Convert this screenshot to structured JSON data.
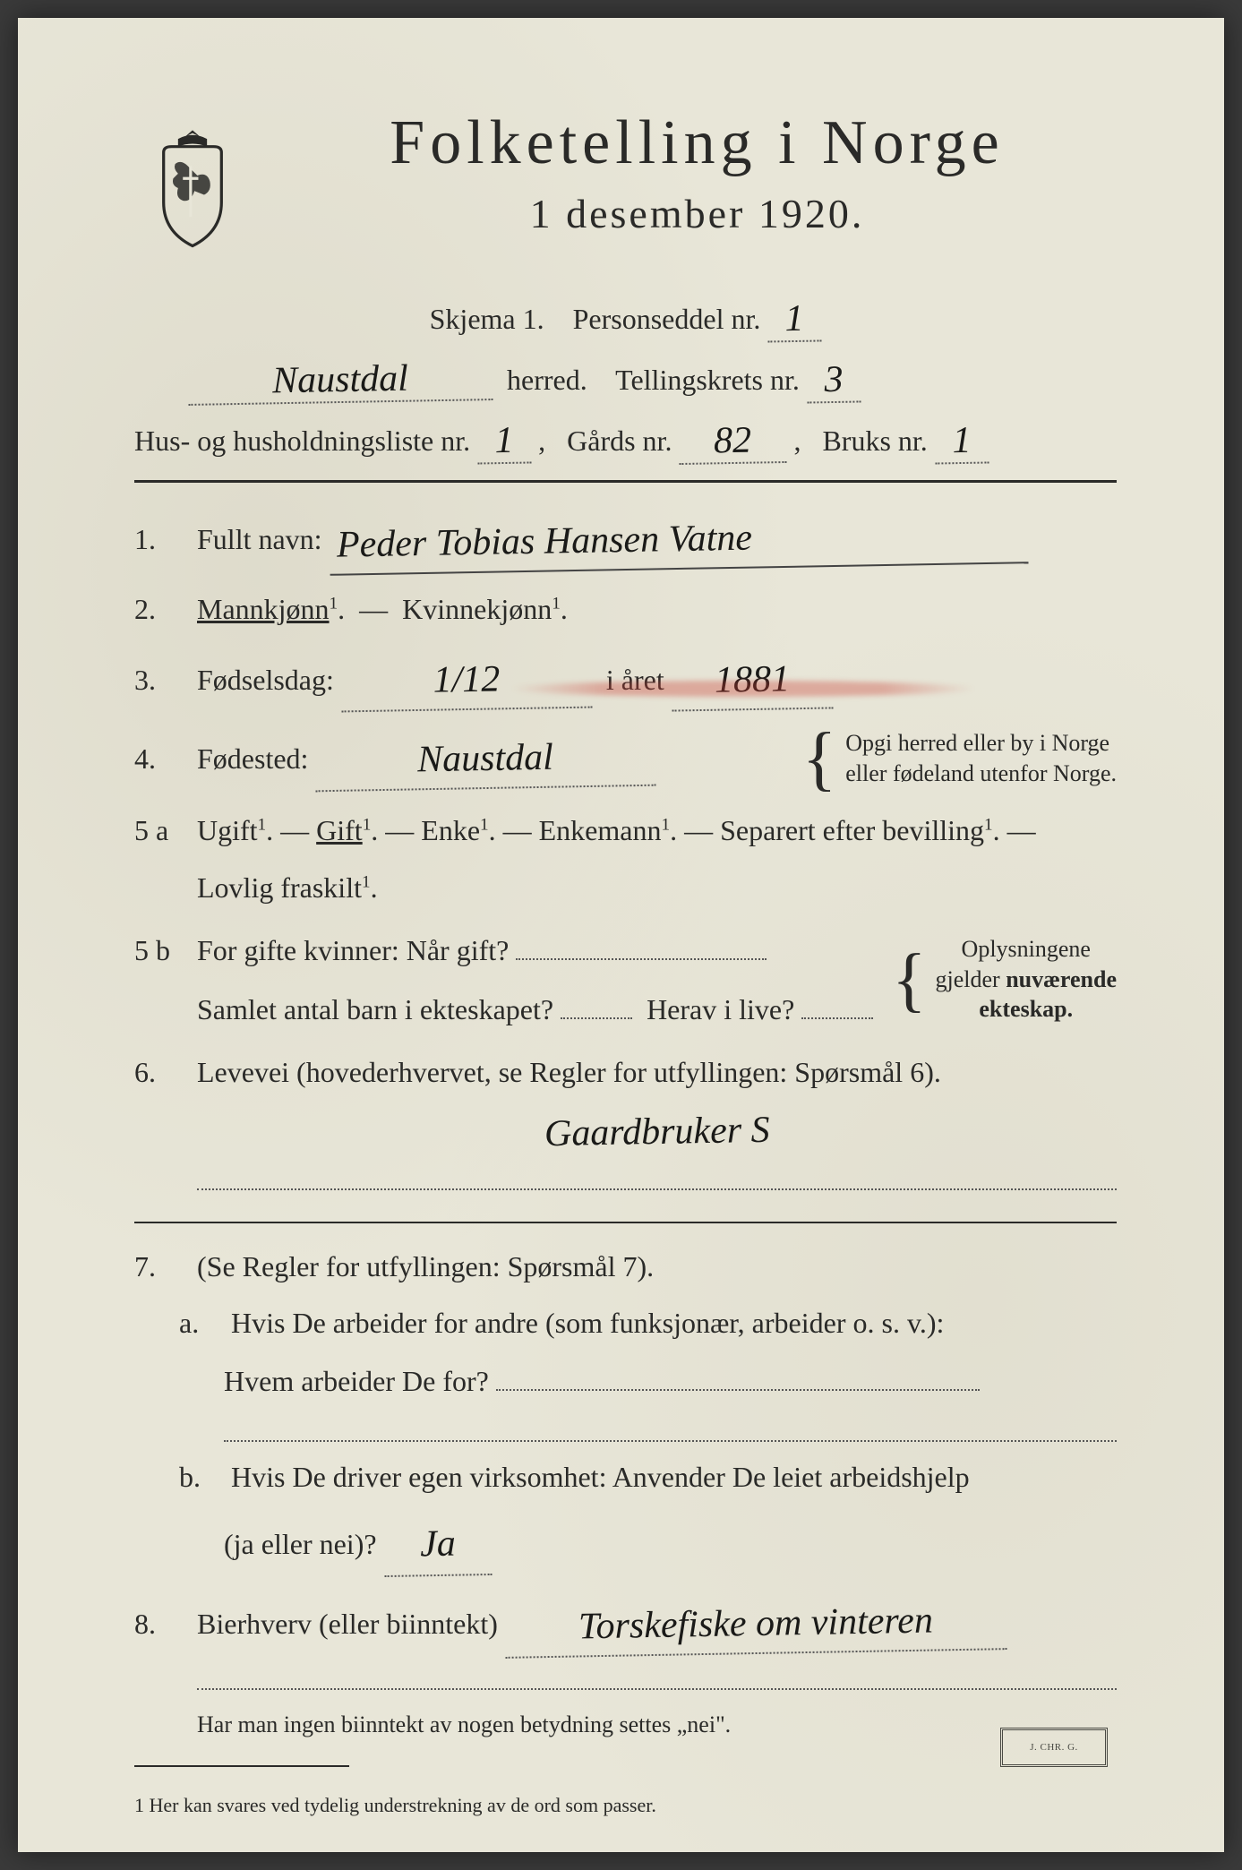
{
  "header": {
    "title": "Folketelling i Norge",
    "subtitle": "1 desember 1920."
  },
  "meta": {
    "skjema_label": "Skjema 1.",
    "personseddel_label": "Personseddel nr.",
    "personseddel_nr": "1",
    "herred_value": "Naustdal",
    "herred_label": "herred.",
    "tellingskrets_label": "Tellingskrets nr.",
    "tellingskrets_nr": "3",
    "hus_label": "Hus- og husholdningsliste nr.",
    "hus_nr": "1",
    "gards_label": "Gårds nr.",
    "gards_nr": "82",
    "bruks_label": "Bruks nr.",
    "bruks_nr": "1"
  },
  "q1": {
    "num": "1.",
    "label": "Fullt navn:",
    "value": "Peder Tobias Hansen Vatne"
  },
  "q2": {
    "num": "2.",
    "opt1": "Mannkjønn",
    "opt2": "Kvinnekjønn",
    "sup": "1"
  },
  "q3": {
    "num": "3.",
    "label": "Fødselsdag:",
    "day": "1/12",
    "year_label": "i året",
    "year": "1881"
  },
  "q4": {
    "num": "4.",
    "label": "Fødested:",
    "value": "Naustdal",
    "note1": "Opgi herred eller by i Norge",
    "note2": "eller fødeland utenfor Norge."
  },
  "q5a": {
    "num": "5 a",
    "opts": [
      "Ugift",
      "Gift",
      "Enke",
      "Enkemann",
      "Separert efter bevilling"
    ],
    "tail": "Lovlig fraskilt",
    "sup": "1"
  },
  "q5b": {
    "num": "5 b",
    "line1_a": "For gifte kvinner:  Når gift?",
    "line2_a": "Samlet antal barn i ekteskapet?",
    "line2_b": "Herav i live?",
    "note1": "Oplysningene",
    "note2": "gjelder nuværende",
    "note3": "ekteskap."
  },
  "q6": {
    "num": "6.",
    "label": "Levevei (hovederhvervet, se Regler for utfyllingen:  Spørsmål 6).",
    "value": "Gaardbruker S"
  },
  "q7": {
    "num": "7.",
    "intro": "(Se Regler for utfyllingen:  Spørsmål 7).",
    "a_label": "a.",
    "a_text1": "Hvis De arbeider for andre (som funksjonær, arbeider o. s. v.):",
    "a_text2": "Hvem arbeider De for?",
    "b_label": "b.",
    "b_text1": "Hvis De driver egen virksomhet:  Anvender De leiet arbeidshjelp",
    "b_text2": "(ja eller nei)?",
    "b_value": "Ja"
  },
  "q8": {
    "num": "8.",
    "label": "Bierhverv (eller biinntekt)",
    "value": "Torskefiske om vinteren"
  },
  "tail_note": "Har man ingen biinntekt av nogen betydning settes „nei\".",
  "footnote": "1  Her kan svares ved tydelig understrekning av de ord som passer.",
  "colors": {
    "paper": "#e8e6d8",
    "ink": "#2a2a28",
    "handwriting": "#1a1a18",
    "red_mark": "rgba(200,60,50,0.35)"
  }
}
